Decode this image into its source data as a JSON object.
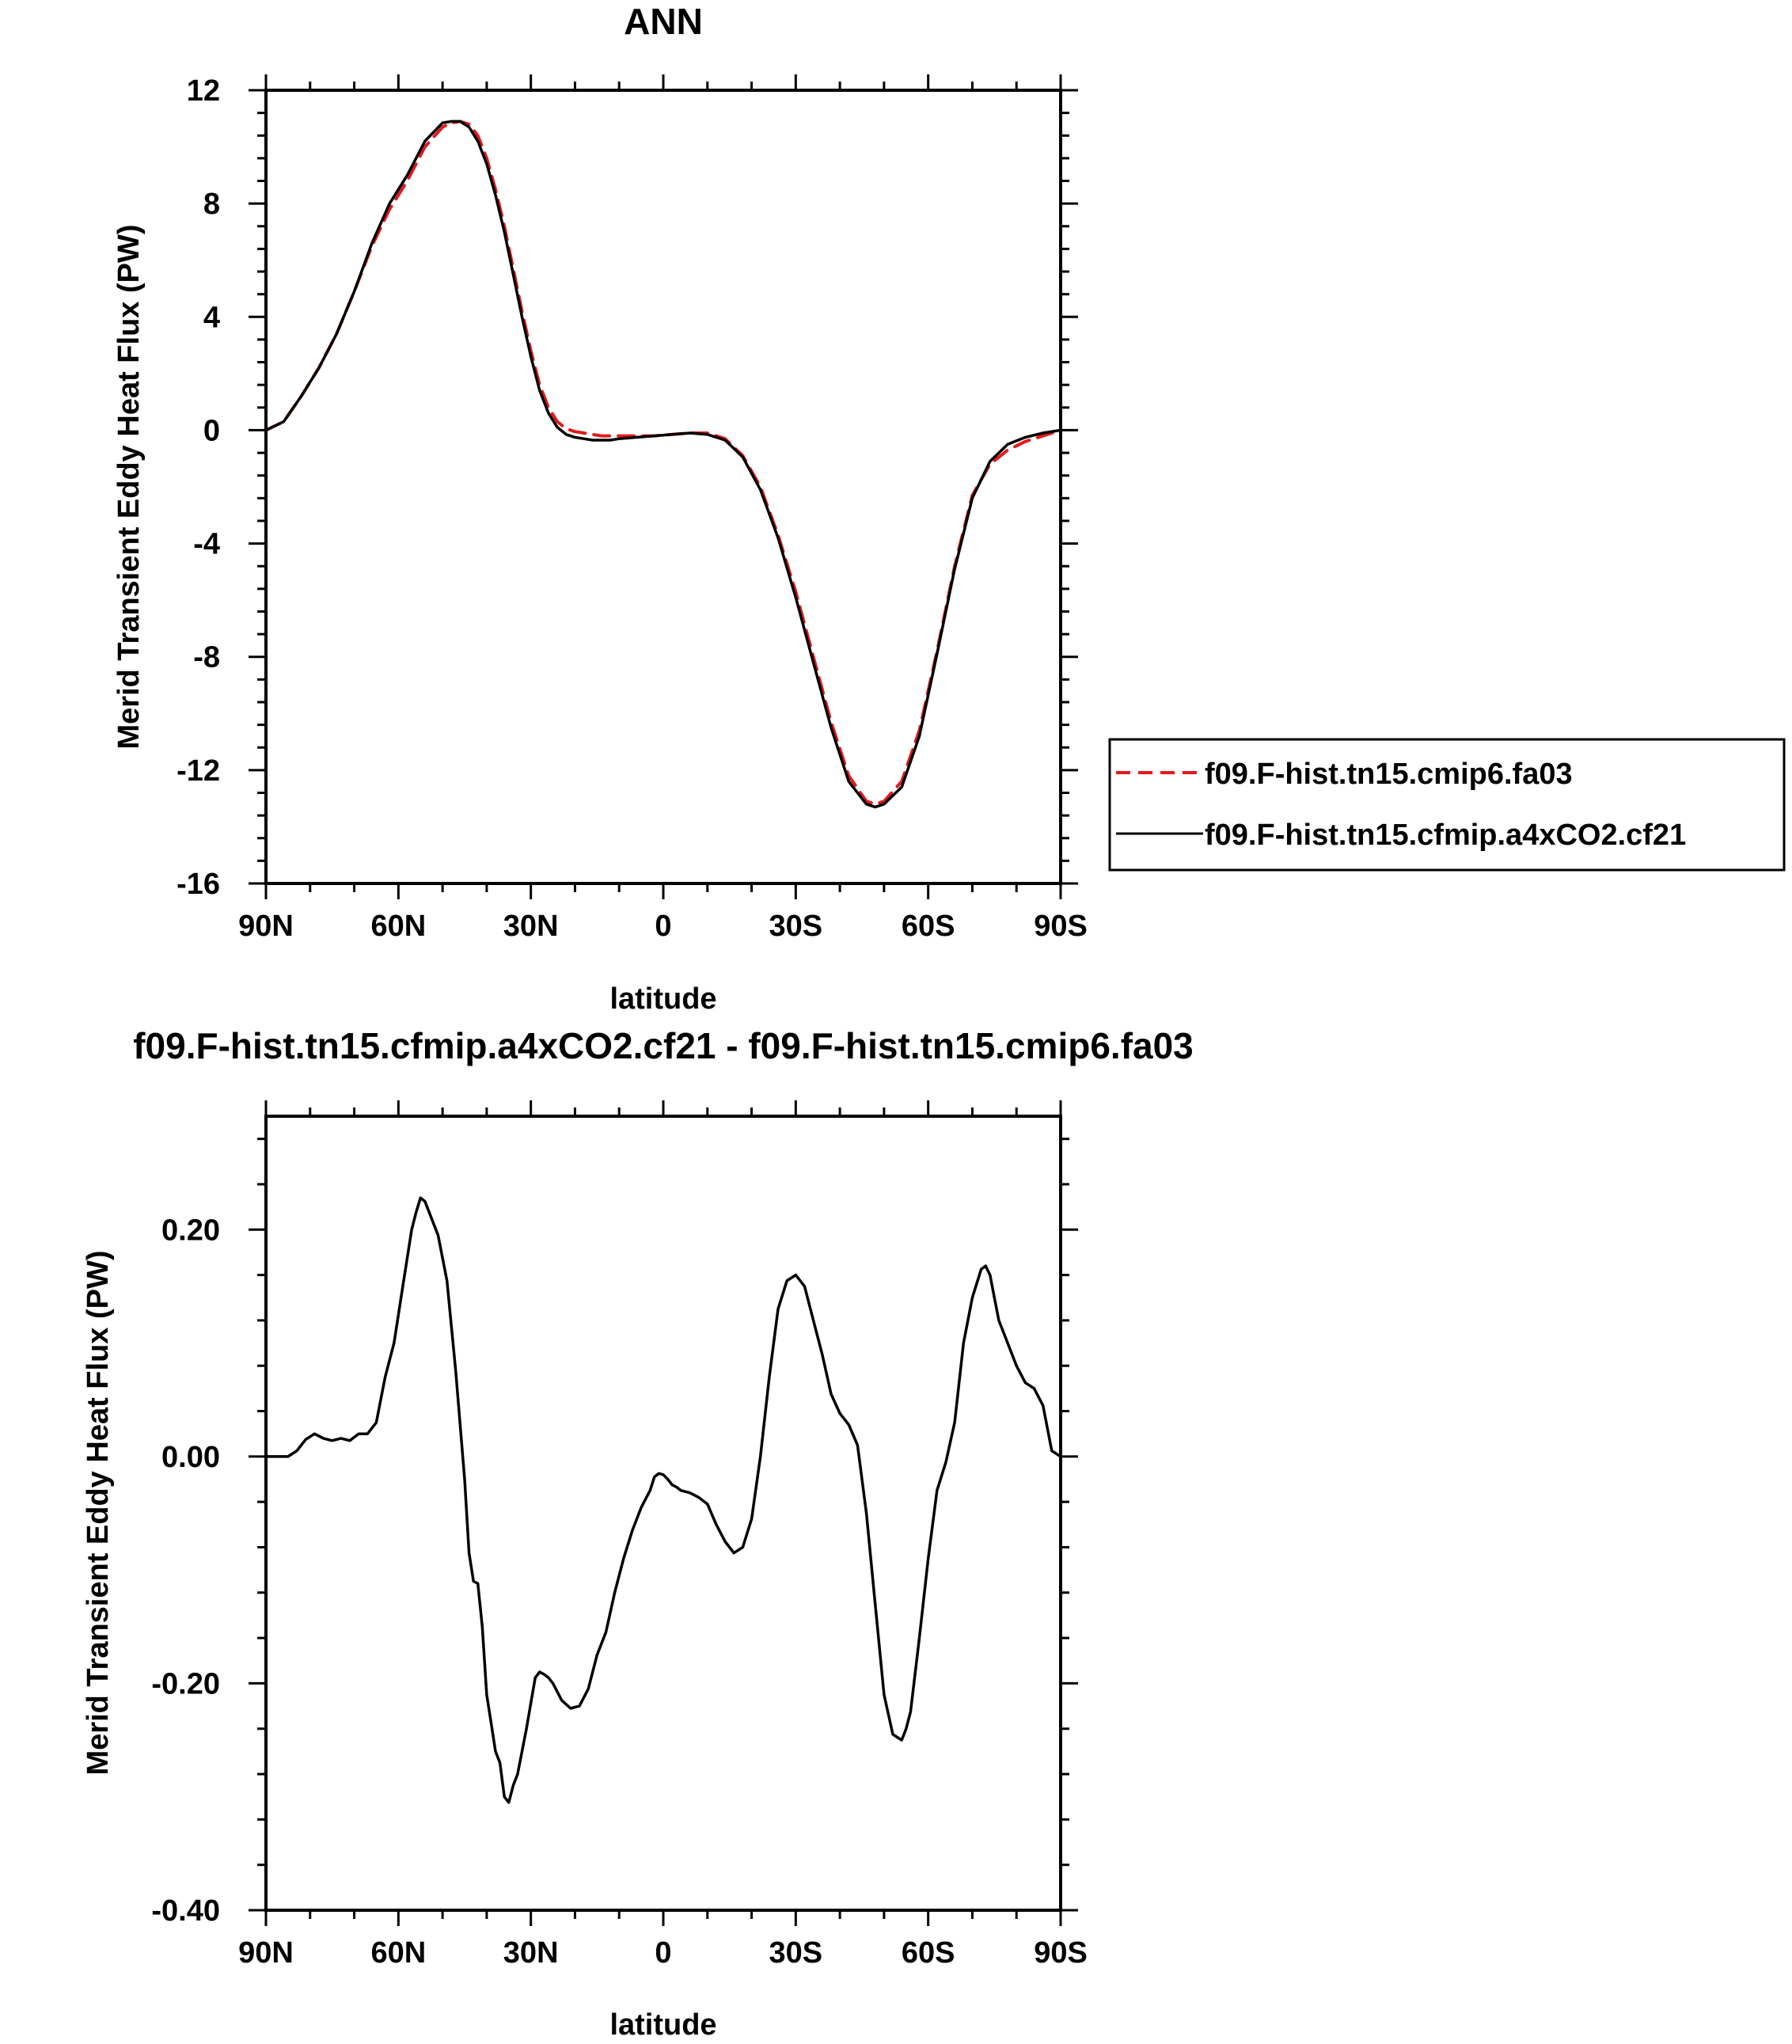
{
  "chart_data": [
    {
      "type": "line",
      "title": "ANN",
      "xlabel": "latitude",
      "ylabel": "Merid Transient Eddy Heat Flux (PW)",
      "xlim": [
        90,
        -90
      ],
      "ylim": [
        -16,
        12
      ],
      "x_ticks": [
        90,
        60,
        30,
        0,
        -30,
        -60,
        -90
      ],
      "x_tick_labels": [
        "90N",
        "60N",
        "30N",
        "0",
        "30S",
        "60S",
        "90S"
      ],
      "y_ticks": [
        12,
        8,
        4,
        0,
        -4,
        -8,
        -12,
        -16
      ],
      "y_tick_labels": [
        "12",
        "8",
        "4",
        "0",
        "-4",
        "-8",
        "-12",
        "-16"
      ],
      "grid": false,
      "legend": "right",
      "series": [
        {
          "name": "f09.F-hist.tn15.cmip6.fa03",
          "color": "#e41a1c",
          "dash": "dashed",
          "x": [
            90,
            86,
            82,
            78,
            74,
            70,
            66,
            62,
            58,
            54,
            50,
            48,
            46,
            44,
            42,
            40,
            38,
            36,
            34,
            32,
            30,
            28,
            26,
            24,
            22,
            20,
            18,
            16,
            14,
            12,
            10,
            6,
            2,
            -2,
            -6,
            -10,
            -14,
            -18,
            -22,
            -26,
            -30,
            -34,
            -38,
            -42,
            -46,
            -48,
            -50,
            -54,
            -58,
            -62,
            -66,
            -70,
            -74,
            -78,
            -82,
            -86,
            -90
          ],
          "y": [
            0,
            0.3,
            1.2,
            2.2,
            3.4,
            4.9,
            6.5,
            7.8,
            8.8,
            10.0,
            10.7,
            10.85,
            10.9,
            10.8,
            10.4,
            9.6,
            8.5,
            7.2,
            5.7,
            4.2,
            2.8,
            1.6,
            0.8,
            0.3,
            0.05,
            -0.05,
            -0.1,
            -0.15,
            -0.2,
            -0.2,
            -0.2,
            -0.2,
            -0.2,
            -0.15,
            -0.1,
            -0.1,
            -0.3,
            -0.9,
            -2.0,
            -3.7,
            -5.7,
            -8.0,
            -10.3,
            -12.2,
            -13.1,
            -13.2,
            -13.1,
            -12.4,
            -10.6,
            -7.8,
            -4.8,
            -2.3,
            -1.2,
            -0.7,
            -0.4,
            -0.2,
            0
          ]
        },
        {
          "name": "f09.F-hist.tn15.cfmip.a4xCO2.cf21",
          "color": "#000000",
          "dash": "solid",
          "x": [
            90,
            86,
            82,
            78,
            74,
            70,
            66,
            62,
            58,
            54,
            50,
            48,
            46,
            44,
            42,
            40,
            38,
            36,
            34,
            32,
            30,
            28,
            26,
            24,
            22,
            20,
            18,
            16,
            14,
            12,
            10,
            6,
            2,
            -2,
            -6,
            -10,
            -14,
            -18,
            -22,
            -26,
            -30,
            -34,
            -38,
            -42,
            -46,
            -48,
            -50,
            -54,
            -58,
            -62,
            -66,
            -70,
            -74,
            -78,
            -82,
            -86,
            -90
          ],
          "y": [
            0,
            0.3,
            1.2,
            2.2,
            3.4,
            4.9,
            6.6,
            8.0,
            9.0,
            10.2,
            10.85,
            10.9,
            10.9,
            10.7,
            10.2,
            9.4,
            8.3,
            7.0,
            5.5,
            4.0,
            2.6,
            1.4,
            0.6,
            0.1,
            -0.15,
            -0.25,
            -0.3,
            -0.35,
            -0.35,
            -0.35,
            -0.3,
            -0.25,
            -0.2,
            -0.15,
            -0.1,
            -0.15,
            -0.35,
            -0.95,
            -2.1,
            -3.8,
            -5.9,
            -8.2,
            -10.5,
            -12.4,
            -13.2,
            -13.3,
            -13.2,
            -12.6,
            -10.8,
            -7.9,
            -4.9,
            -2.4,
            -1.1,
            -0.5,
            -0.25,
            -0.1,
            0
          ]
        }
      ]
    },
    {
      "type": "line",
      "title": "f09.F-hist.tn15.cfmip.a4xCO2.cf21 - f09.F-hist.tn15.cmip6.fa03",
      "xlabel": "latitude",
      "ylabel": "Merid Transient Eddy Heat Flux (PW)",
      "xlim": [
        90,
        -90
      ],
      "ylim": [
        -0.4,
        0.3
      ],
      "x_ticks": [
        90,
        60,
        30,
        0,
        -30,
        -60,
        -90
      ],
      "x_tick_labels": [
        "90N",
        "60N",
        "30N",
        "0",
        "30S",
        "60S",
        "90S"
      ],
      "y_ticks": [
        0.2,
        0.0,
        -0.2,
        -0.4
      ],
      "y_tick_labels": [
        "0.20",
        "0.00",
        "-0.20",
        "-0.40"
      ],
      "grid": false,
      "series": [
        {
          "color": "#000000",
          "dash": "solid",
          "x": [
            90,
            87,
            85,
            83,
            81,
            79,
            77,
            75,
            73,
            71,
            69,
            67,
            65,
            63,
            61,
            59,
            57,
            56,
            55,
            54,
            53,
            51,
            49,
            47,
            45,
            44,
            43,
            42,
            41,
            40,
            39,
            38,
            37,
            36,
            35,
            34,
            33,
            32,
            31,
            29,
            28,
            27,
            26,
            25,
            23,
            21,
            19,
            17,
            15,
            13,
            11,
            9,
            7,
            5,
            3,
            2,
            1,
            0,
            -1,
            -2,
            -3,
            -4,
            -6,
            -8,
            -10,
            -12,
            -14,
            -16,
            -18,
            -20,
            -22,
            -24,
            -26,
            -28,
            -30,
            -32,
            -34,
            -36,
            -38,
            -40,
            -42,
            -44,
            -46,
            -48,
            -50,
            -52,
            -54,
            -55,
            -56,
            -58,
            -60,
            -62,
            -64,
            -66,
            -68,
            -70,
            -72,
            -73,
            -74,
            -75,
            -76,
            -78,
            -80,
            -82,
            -84,
            -86,
            -88,
            -90
          ],
          "y": [
            0,
            0.0,
            0.0,
            0.005,
            0.015,
            0.02,
            0.016,
            0.014,
            0.016,
            0.014,
            0.02,
            0.02,
            0.03,
            0.07,
            0.1,
            0.15,
            0.2,
            0.215,
            0.228,
            0.225,
            0.215,
            0.195,
            0.155,
            0.075,
            -0.02,
            -0.085,
            -0.11,
            -0.112,
            -0.15,
            -0.21,
            -0.235,
            -0.26,
            -0.27,
            -0.3,
            -0.305,
            -0.29,
            -0.28,
            -0.26,
            -0.24,
            -0.195,
            -0.19,
            -0.192,
            -0.195,
            -0.2,
            -0.215,
            -0.222,
            -0.22,
            -0.205,
            -0.175,
            -0.155,
            -0.12,
            -0.09,
            -0.065,
            -0.045,
            -0.03,
            -0.018,
            -0.015,
            -0.016,
            -0.02,
            -0.025,
            -0.027,
            -0.03,
            -0.032,
            -0.036,
            -0.042,
            -0.06,
            -0.075,
            -0.085,
            -0.08,
            -0.055,
            0.0,
            0.07,
            0.13,
            0.155,
            0.16,
            0.15,
            0.12,
            0.09,
            0.055,
            0.038,
            0.028,
            0.01,
            -0.05,
            -0.13,
            -0.21,
            -0.245,
            -0.25,
            -0.24,
            -0.225,
            -0.16,
            -0.09,
            -0.03,
            -0.005,
            0.03,
            0.1,
            0.14,
            0.165,
            0.168,
            0.16,
            0.14,
            0.12,
            0.1,
            0.08,
            0.065,
            0.06,
            0.045,
            0.005,
            0.0
          ]
        }
      ]
    }
  ]
}
